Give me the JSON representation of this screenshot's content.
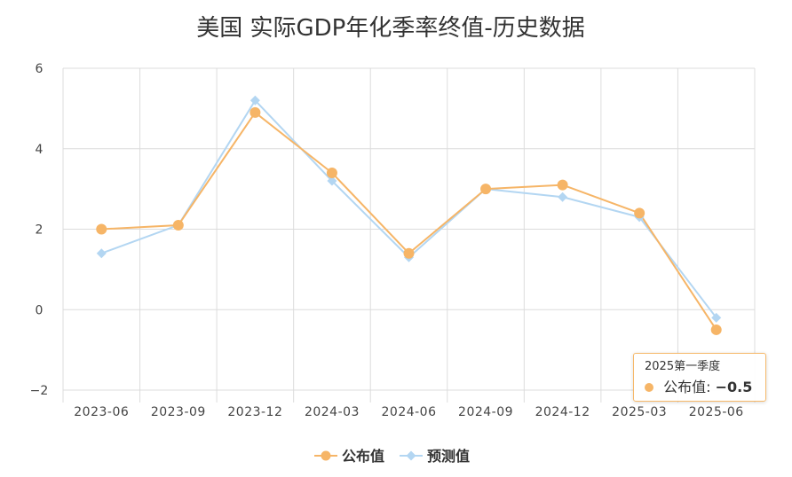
{
  "chart_data": {
    "type": "line",
    "title": "美国 实际GDP年化季率终值-历史数据",
    "categories": [
      "2023-06",
      "2023-09",
      "2023-12",
      "2024-03",
      "2024-06",
      "2024-09",
      "2024-12",
      "2025-03",
      "2025-06"
    ],
    "series": [
      {
        "name": "公布值",
        "color": "#f6b567",
        "marker": "circle",
        "values": [
          2.0,
          2.1,
          4.9,
          3.4,
          1.4,
          3.0,
          3.1,
          2.4,
          -0.5
        ]
      },
      {
        "name": "预测值",
        "color": "#b3d6f2",
        "marker": "diamond",
        "values": [
          1.4,
          2.1,
          5.2,
          3.2,
          1.3,
          3.0,
          2.8,
          2.3,
          -0.2
        ]
      }
    ],
    "ylim": [
      -2,
      6
    ],
    "yticks": [
      "6",
      "4",
      "2",
      "0",
      "−2"
    ],
    "ytick_values": [
      6,
      4,
      2,
      0,
      -2
    ],
    "grid": true,
    "legend": "bottom-center"
  },
  "tooltip": {
    "header": "2025第一季度",
    "series_label": "公布值:",
    "value": "−0.5",
    "color": "#f6b567"
  }
}
